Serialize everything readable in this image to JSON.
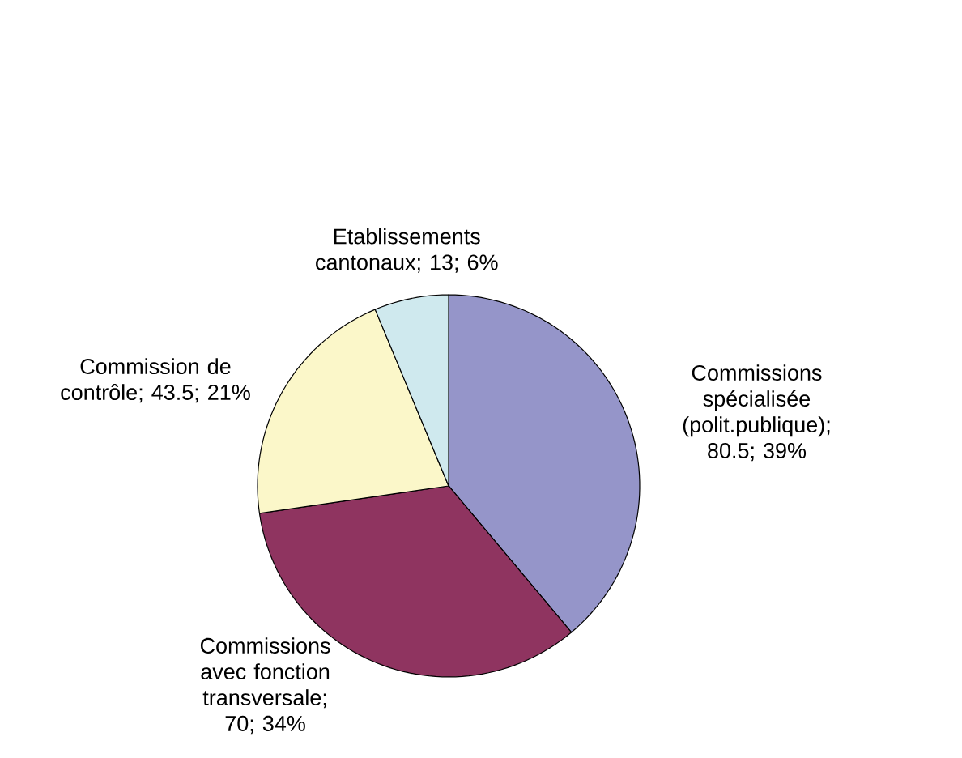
{
  "chart_data": {
    "type": "pie",
    "categories": [
      "Commissions spécialisée (polit.publique)",
      "Commissions avec fonction transversale",
      "Commission de contrôle",
      "Etablissements cantonaux"
    ],
    "values": [
      80.5,
      70,
      43.5,
      13
    ],
    "value_labels": [
      "; 80.5; 39%",
      "; 70; 34%",
      "; 43.5; 21%",
      "; 13; 6%"
    ],
    "colors": [
      "#9595c9",
      "#8f3460",
      "#fbf7c9",
      "#cfe9ee"
    ]
  }
}
